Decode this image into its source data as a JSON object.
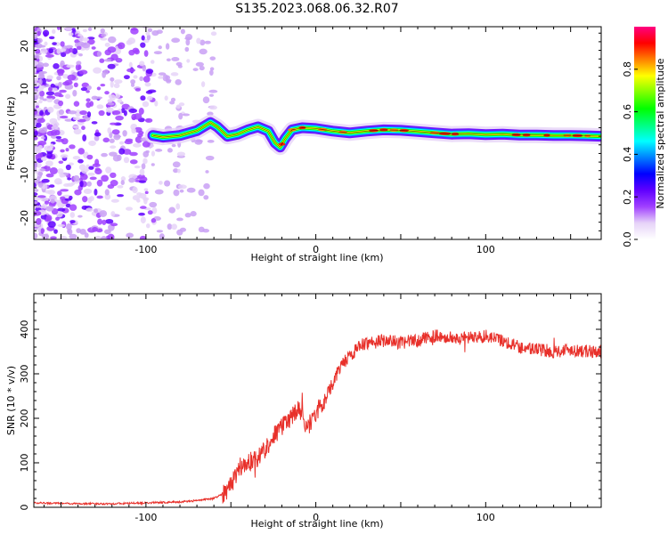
{
  "title": "S135.2023.068.06.32.R07",
  "chart_data": [
    {
      "type": "heatmap",
      "xlabel": "Height of straight line (km)",
      "ylabel": "Frequency (Hz)",
      "xlim": [
        -166,
        168
      ],
      "ylim": [
        -25,
        24.5
      ],
      "x_ticks": [
        -100,
        0,
        100
      ],
      "y_ticks": [
        -20,
        -10,
        0,
        10,
        20
      ],
      "colorbar": {
        "label": "Normalized spectral amplitude",
        "range": [
          0.0,
          1.0
        ],
        "ticks": [
          "0.0",
          "0.2",
          "0.4",
          "0.6",
          "0.8"
        ],
        "colormap": [
          "#ffffff",
          "#e6d3f8",
          "#a040ff",
          "#6000ff",
          "#0000ff",
          "#0080ff",
          "#00ffff",
          "#00ff80",
          "#00ff00",
          "#80ff00",
          "#ffff00",
          "#ff8000",
          "#ff0000",
          "#ff0080"
        ]
      },
      "ridge": {
        "x": [
          -96,
          -90,
          -80,
          -70,
          -62,
          -58,
          -52,
          -46,
          -40,
          -34,
          -28,
          -24,
          -21,
          -18,
          -14,
          -8,
          0,
          10,
          20,
          30,
          40,
          50,
          60,
          70,
          80,
          90,
          100,
          110,
          120,
          130,
          140,
          150,
          160,
          168
        ],
        "y": [
          -0.8,
          -1.2,
          -0.8,
          0.3,
          2.2,
          1.2,
          -1.0,
          -0.5,
          0.5,
          1.2,
          0.2,
          -2.5,
          -3.5,
          -1.5,
          0.5,
          1.0,
          0.8,
          0.2,
          -0.2,
          0.2,
          0.5,
          0.4,
          0.1,
          -0.2,
          -0.5,
          -0.4,
          -0.6,
          -0.5,
          -0.7,
          -0.7,
          -0.8,
          -0.8,
          -0.9,
          -1.0
        ]
      },
      "noise_region_x": [
        -166,
        -60
      ]
    },
    {
      "type": "line",
      "xlabel": "Height of straight line (km)",
      "ylabel": "SNR (10 * v/v)",
      "xlim": [
        -166,
        168
      ],
      "ylim": [
        0,
        480
      ],
      "x_ticks": [
        -100,
        0,
        100
      ],
      "y_ticks": [
        0,
        100,
        200,
        300,
        400
      ],
      "color": "#e8302a",
      "series": [
        {
          "x": [
            -166,
            -140,
            -120,
            -100,
            -80,
            -70,
            -60,
            -55,
            -50,
            -45,
            -40,
            -35,
            -30,
            -25,
            -20,
            -15,
            -10,
            -5,
            0,
            5,
            10,
            15,
            20,
            25,
            30,
            40,
            50,
            60,
            70,
            80,
            90,
            100,
            110,
            120,
            130,
            140,
            150,
            160,
            168
          ],
          "values": [
            10,
            8,
            8,
            10,
            12,
            15,
            20,
            30,
            50,
            90,
            100,
            110,
            130,
            160,
            180,
            200,
            220,
            180,
            210,
            240,
            280,
            320,
            340,
            360,
            370,
            375,
            370,
            375,
            385,
            380,
            380,
            385,
            375,
            360,
            355,
            350,
            355,
            350,
            350
          ]
        }
      ]
    }
  ]
}
